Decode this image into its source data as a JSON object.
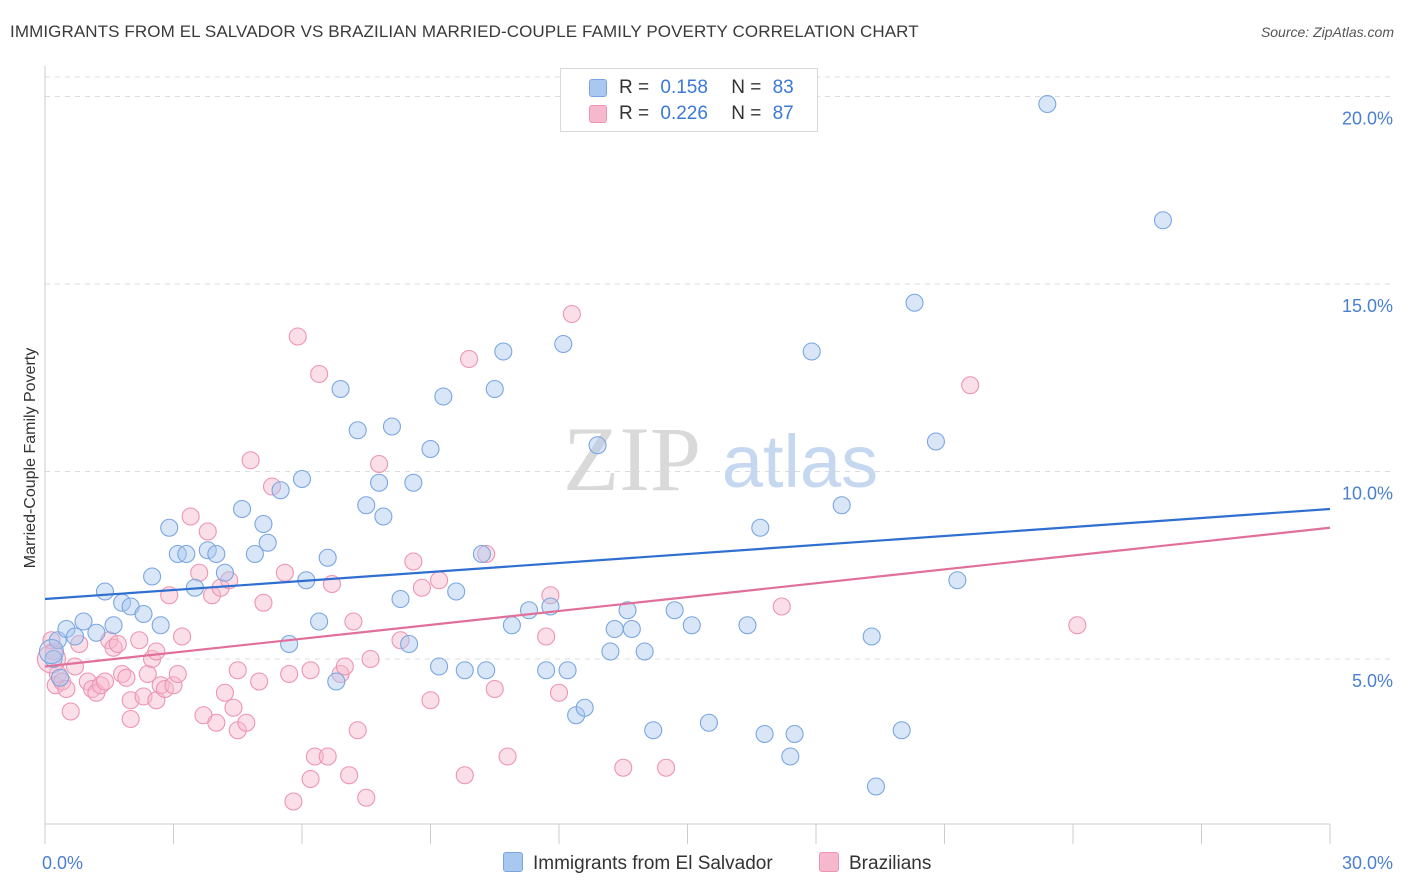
{
  "title": "IMMIGRANTS FROM EL SALVADOR VS BRAZILIAN MARRIED-COUPLE FAMILY POVERTY CORRELATION CHART",
  "source": "Source: ZipAtlas.com",
  "watermark": {
    "zip": "ZIP",
    "atlas": "atlas"
  },
  "colors": {
    "blue_fill": "#a9c8f0",
    "blue_stroke": "#7aa6e0",
    "blue_line": "#2f6fd0",
    "pink_fill": "#f6b8cc",
    "pink_stroke": "#ee94b1",
    "pink_line": "#e0709a",
    "axis_text": "#4a7fd1",
    "grid": "#dcdcdc"
  },
  "legend": {
    "rows": [
      {
        "r_label": "R =",
        "r_value": "0.158",
        "n_label": "N =",
        "n_value": "83"
      },
      {
        "r_label": "R =",
        "r_value": "0.226",
        "n_label": "N =",
        "n_value": "87"
      }
    ]
  },
  "bottom_legend": [
    {
      "label": "Immigrants from El Salvador"
    },
    {
      "label": "Brazilians"
    }
  ],
  "chart_data": {
    "type": "scatter",
    "title": "IMMIGRANTS FROM EL SALVADOR VS BRAZILIAN MARRIED-COUPLE FAMILY POVERTY CORRELATION CHART",
    "xlabel": "",
    "ylabel": "Married-Couple Family Poverty",
    "xlim": [
      0,
      30
    ],
    "ylim": [
      0.6,
      20.6
    ],
    "x_tick_labels": [
      {
        "value": 0,
        "label": "0.0%"
      },
      {
        "value": 30,
        "label": "30.0%"
      }
    ],
    "y_tick_labels": [
      {
        "value": 5,
        "label": "5.0%"
      },
      {
        "value": 10,
        "label": "10.0%"
      },
      {
        "value": 15,
        "label": "15.0%"
      },
      {
        "value": 20,
        "label": "20.0%"
      }
    ],
    "x_minor_ticks": [
      0,
      3,
      6,
      9,
      12,
      15,
      18,
      21,
      24,
      27,
      30
    ],
    "series": [
      {
        "name": "Immigrants from El Salvador",
        "color": "blue",
        "trend": {
          "x": [
            0,
            30
          ],
          "y": [
            6.6,
            9.0
          ]
        },
        "points": [
          [
            0.3,
            5.5
          ],
          [
            0.5,
            5.8
          ],
          [
            0.7,
            5.6
          ],
          [
            0.9,
            6.0
          ],
          [
            1.2,
            5.7
          ],
          [
            1.4,
            6.8
          ],
          [
            1.6,
            5.9
          ],
          [
            1.8,
            6.5
          ],
          [
            2.0,
            6.4
          ],
          [
            2.3,
            6.2
          ],
          [
            2.5,
            7.2
          ],
          [
            2.7,
            5.9
          ],
          [
            2.9,
            8.5
          ],
          [
            3.1,
            7.8
          ],
          [
            3.3,
            7.8
          ],
          [
            3.5,
            6.9
          ],
          [
            3.8,
            7.9
          ],
          [
            4.0,
            7.8
          ],
          [
            4.2,
            7.3
          ],
          [
            4.6,
            9.0
          ],
          [
            4.9,
            7.8
          ],
          [
            5.1,
            8.6
          ],
          [
            5.2,
            8.1
          ],
          [
            5.5,
            9.5
          ],
          [
            5.7,
            5.4
          ],
          [
            6.0,
            9.8
          ],
          [
            6.1,
            7.1
          ],
          [
            6.4,
            6.0
          ],
          [
            6.6,
            7.7
          ],
          [
            6.8,
            4.4
          ],
          [
            6.9,
            12.2
          ],
          [
            7.3,
            11.1
          ],
          [
            7.5,
            9.1
          ],
          [
            7.8,
            9.7
          ],
          [
            7.9,
            8.8
          ],
          [
            8.1,
            11.2
          ],
          [
            8.3,
            6.6
          ],
          [
            8.5,
            5.4
          ],
          [
            8.6,
            9.7
          ],
          [
            9.0,
            10.6
          ],
          [
            9.2,
            4.8
          ],
          [
            9.3,
            12.0
          ],
          [
            9.6,
            6.8
          ],
          [
            9.8,
            4.7
          ],
          [
            10.2,
            7.8
          ],
          [
            10.3,
            4.7
          ],
          [
            10.5,
            12.2
          ],
          [
            10.7,
            13.2
          ],
          [
            10.9,
            5.9
          ],
          [
            11.3,
            6.3
          ],
          [
            11.7,
            4.7
          ],
          [
            11.8,
            6.4
          ],
          [
            12.1,
            13.4
          ],
          [
            12.2,
            4.7
          ],
          [
            12.4,
            3.5
          ],
          [
            12.6,
            3.7
          ],
          [
            12.9,
            10.7
          ],
          [
            13.2,
            5.2
          ],
          [
            13.3,
            5.8
          ],
          [
            13.6,
            6.3
          ],
          [
            13.7,
            5.8
          ],
          [
            14.0,
            5.2
          ],
          [
            14.2,
            3.1
          ],
          [
            14.7,
            6.3
          ],
          [
            15.1,
            5.9
          ],
          [
            15.5,
            3.3
          ],
          [
            16.4,
            5.9
          ],
          [
            16.7,
            8.5
          ],
          [
            16.8,
            3.0
          ],
          [
            17.4,
            2.4
          ],
          [
            17.5,
            3.0
          ],
          [
            17.9,
            13.2
          ],
          [
            18.6,
            9.1
          ],
          [
            19.3,
            5.6
          ],
          [
            19.4,
            1.6
          ],
          [
            20.0,
            3.1
          ],
          [
            20.3,
            14.5
          ],
          [
            20.8,
            10.8
          ],
          [
            21.3,
            7.1
          ],
          [
            23.4,
            19.8
          ],
          [
            26.1,
            16.7
          ],
          [
            0.2,
            5.0
          ],
          [
            0.35,
            4.5
          ]
        ]
      },
      {
        "name": "Brazilians",
        "color": "pink",
        "trend": {
          "x": [
            0,
            30
          ],
          "y": [
            4.8,
            8.5
          ]
        },
        "points": [
          [
            0.2,
            5.2
          ],
          [
            0.25,
            4.3
          ],
          [
            0.3,
            4.6
          ],
          [
            0.4,
            4.4
          ],
          [
            0.5,
            4.2
          ],
          [
            0.6,
            3.6
          ],
          [
            0.7,
            4.8
          ],
          [
            0.8,
            5.4
          ],
          [
            1.0,
            4.4
          ],
          [
            1.1,
            4.2
          ],
          [
            1.2,
            4.1
          ],
          [
            1.3,
            4.3
          ],
          [
            1.4,
            4.4
          ],
          [
            1.5,
            5.5
          ],
          [
            1.6,
            5.3
          ],
          [
            1.7,
            5.4
          ],
          [
            1.8,
            4.6
          ],
          [
            1.9,
            4.5
          ],
          [
            2.0,
            3.4
          ],
          [
            2.0,
            3.9
          ],
          [
            2.2,
            5.5
          ],
          [
            2.3,
            4.0
          ],
          [
            2.4,
            4.6
          ],
          [
            2.5,
            5.0
          ],
          [
            2.6,
            3.9
          ],
          [
            2.6,
            5.2
          ],
          [
            2.7,
            4.3
          ],
          [
            2.8,
            4.2
          ],
          [
            2.9,
            6.7
          ],
          [
            3.0,
            4.3
          ],
          [
            3.1,
            4.6
          ],
          [
            3.2,
            5.6
          ],
          [
            3.4,
            8.8
          ],
          [
            3.6,
            7.3
          ],
          [
            3.7,
            3.5
          ],
          [
            3.8,
            8.4
          ],
          [
            3.9,
            6.7
          ],
          [
            4.0,
            3.3
          ],
          [
            4.1,
            6.9
          ],
          [
            4.2,
            4.1
          ],
          [
            4.3,
            7.1
          ],
          [
            4.4,
            3.7
          ],
          [
            4.5,
            3.1
          ],
          [
            4.5,
            4.7
          ],
          [
            4.7,
            3.3
          ],
          [
            4.8,
            10.3
          ],
          [
            5.0,
            4.4
          ],
          [
            5.1,
            6.5
          ],
          [
            5.3,
            9.6
          ],
          [
            5.6,
            7.3
          ],
          [
            5.7,
            4.6
          ],
          [
            5.8,
            1.2
          ],
          [
            5.9,
            13.6
          ],
          [
            6.2,
            4.7
          ],
          [
            6.2,
            1.8
          ],
          [
            6.3,
            2.4
          ],
          [
            6.4,
            12.6
          ],
          [
            6.6,
            2.4
          ],
          [
            6.7,
            7.0
          ],
          [
            6.9,
            4.6
          ],
          [
            7.0,
            4.8
          ],
          [
            7.1,
            1.9
          ],
          [
            7.2,
            6.0
          ],
          [
            7.3,
            3.1
          ],
          [
            7.5,
            1.3
          ],
          [
            7.6,
            5.0
          ],
          [
            7.8,
            10.2
          ],
          [
            8.3,
            5.5
          ],
          [
            8.6,
            7.6
          ],
          [
            8.8,
            6.9
          ],
          [
            9.0,
            3.9
          ],
          [
            9.2,
            7.1
          ],
          [
            9.8,
            1.9
          ],
          [
            9.9,
            13.0
          ],
          [
            10.3,
            7.8
          ],
          [
            10.5,
            4.2
          ],
          [
            10.8,
            2.4
          ],
          [
            11.7,
            5.6
          ],
          [
            11.8,
            6.7
          ],
          [
            12.0,
            4.1
          ],
          [
            12.3,
            14.2
          ],
          [
            13.5,
            2.1
          ],
          [
            14.5,
            2.1
          ],
          [
            17.2,
            6.4
          ],
          [
            21.6,
            12.3
          ],
          [
            24.1,
            5.9
          ],
          [
            0.15,
            5.5
          ]
        ]
      }
    ]
  }
}
